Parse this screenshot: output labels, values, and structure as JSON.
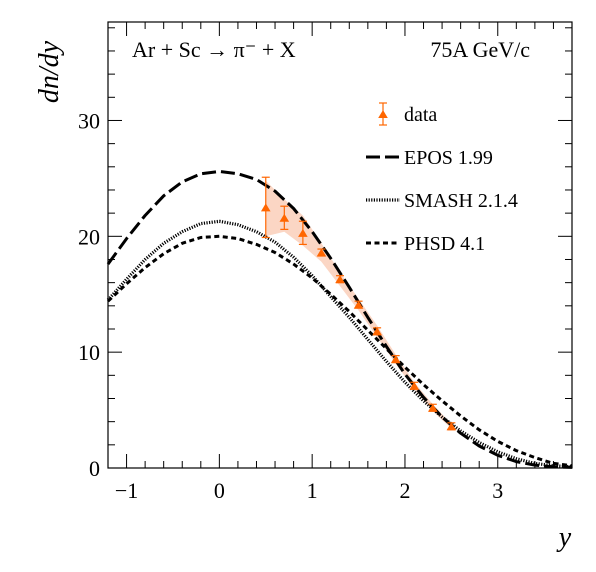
{
  "chart_data": {
    "type": "line",
    "header": {
      "reaction": "Ar + Sc → π⁻ + X",
      "energy": "75A GeV/c"
    },
    "xlabel": "y",
    "ylabel": "dn/dy",
    "xlim": [
      -1.2,
      3.8
    ],
    "ylim": [
      0,
      38.5
    ],
    "x_ticks": [
      -1,
      0,
      1,
      2,
      3
    ],
    "x_tick_labels": [
      "−1",
      "0",
      "1",
      "2",
      "3"
    ],
    "y_ticks": [
      0,
      10,
      20,
      30
    ],
    "y_tick_labels": [
      "0",
      "10",
      "20",
      "30"
    ],
    "grid": false,
    "legend_position": "right",
    "colors": {
      "data": "#ff6600",
      "band": "#f9c8b0",
      "models": "#000000"
    },
    "series": [
      {
        "name": "data",
        "kind": "points",
        "x": [
          0.5,
          0.7,
          0.9,
          1.1,
          1.3,
          1.5,
          1.7,
          1.9,
          2.1,
          2.3,
          2.5
        ],
        "y": [
          22.5,
          21.6,
          20.3,
          18.6,
          16.3,
          14.1,
          11.8,
          9.4,
          7.1,
          5.2,
          3.6
        ],
        "err": [
          2.6,
          1.0,
          1.0,
          0.3,
          0.3,
          0.3,
          0.3,
          0.3,
          0.3,
          0.3,
          0.3
        ],
        "band_low": [
          20.0,
          20.4,
          19.2,
          17.8,
          15.7,
          13.6,
          11.3,
          9.0,
          6.8,
          4.9,
          3.4
        ],
        "band_high": [
          24.8,
          23.2,
          21.8,
          19.4,
          16.9,
          14.6,
          12.3,
          9.8,
          7.4,
          5.5,
          3.8
        ]
      },
      {
        "name": "EPOS 1.99",
        "kind": "line",
        "dash": "long-dash",
        "x": [
          -1.2,
          -1.0,
          -0.8,
          -0.6,
          -0.4,
          -0.2,
          0.0,
          0.2,
          0.4,
          0.6,
          0.8,
          1.0,
          1.2,
          1.4,
          1.6,
          1.8,
          2.0,
          2.2,
          2.4,
          2.6,
          2.8,
          3.0,
          3.2,
          3.4,
          3.6,
          3.8
        ],
        "y": [
          17.6,
          19.8,
          21.8,
          23.5,
          24.7,
          25.4,
          25.6,
          25.4,
          24.9,
          23.9,
          22.4,
          20.4,
          18.1,
          15.6,
          13.0,
          10.5,
          8.1,
          6.1,
          4.4,
          3.0,
          1.9,
          1.1,
          0.55,
          0.25,
          0.1,
          0.05
        ]
      },
      {
        "name": "SMASH 2.1.4",
        "kind": "line",
        "dash": "dotted",
        "x": [
          -1.2,
          -1.0,
          -0.8,
          -0.6,
          -0.4,
          -0.2,
          0.0,
          0.2,
          0.4,
          0.6,
          0.8,
          1.0,
          1.2,
          1.4,
          1.6,
          1.8,
          2.0,
          2.2,
          2.4,
          2.6,
          2.8,
          3.0,
          3.2,
          3.4,
          3.6,
          3.8
        ],
        "y": [
          14.5,
          16.3,
          18.0,
          19.4,
          20.4,
          21.1,
          21.3,
          21.0,
          20.4,
          19.5,
          18.2,
          16.6,
          14.8,
          13.0,
          11.1,
          9.2,
          7.4,
          5.8,
          4.4,
          3.2,
          2.2,
          1.4,
          0.8,
          0.4,
          0.2,
          0.1
        ]
      },
      {
        "name": "PHSD 4.1",
        "kind": "line",
        "dash": "short-dash",
        "x": [
          -1.2,
          -1.0,
          -0.8,
          -0.6,
          -0.4,
          -0.2,
          0.0,
          0.2,
          0.4,
          0.6,
          0.8,
          1.0,
          1.2,
          1.4,
          1.6,
          1.8,
          2.0,
          2.2,
          2.4,
          2.6,
          2.8,
          3.0,
          3.2,
          3.4,
          3.6,
          3.8
        ],
        "y": [
          14.4,
          15.9,
          17.3,
          18.5,
          19.4,
          19.9,
          20.0,
          19.8,
          19.3,
          18.6,
          17.6,
          16.4,
          15.0,
          13.5,
          11.9,
          10.3,
          8.7,
          7.2,
          5.8,
          4.5,
          3.3,
          2.3,
          1.5,
          0.9,
          0.4,
          0.2
        ]
      }
    ]
  }
}
